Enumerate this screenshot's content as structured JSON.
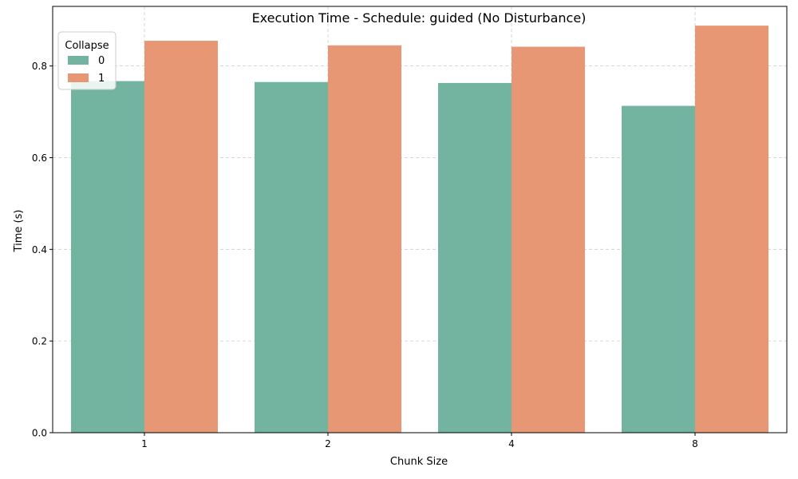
{
  "chart_data": {
    "type": "bar",
    "title": "Execution Time - Schedule: guided (No Disturbance)",
    "xlabel": "Chunk Size",
    "ylabel": "Time (s)",
    "categories": [
      "1",
      "2",
      "4",
      "8"
    ],
    "ylim": [
      0,
      0.93
    ],
    "yticks": [
      "0.0",
      "0.2",
      "0.4",
      "0.6",
      "0.8"
    ],
    "grid": true,
    "legend": {
      "title": "Collapse",
      "placement": "top-left"
    },
    "series": [
      {
        "name": "0",
        "color": "#72b49f",
        "values": [
          0.767,
          0.765,
          0.763,
          0.713
        ]
      },
      {
        "name": "1",
        "color": "#e89774",
        "values": [
          0.855,
          0.845,
          0.842,
          0.888
        ]
      }
    ]
  }
}
